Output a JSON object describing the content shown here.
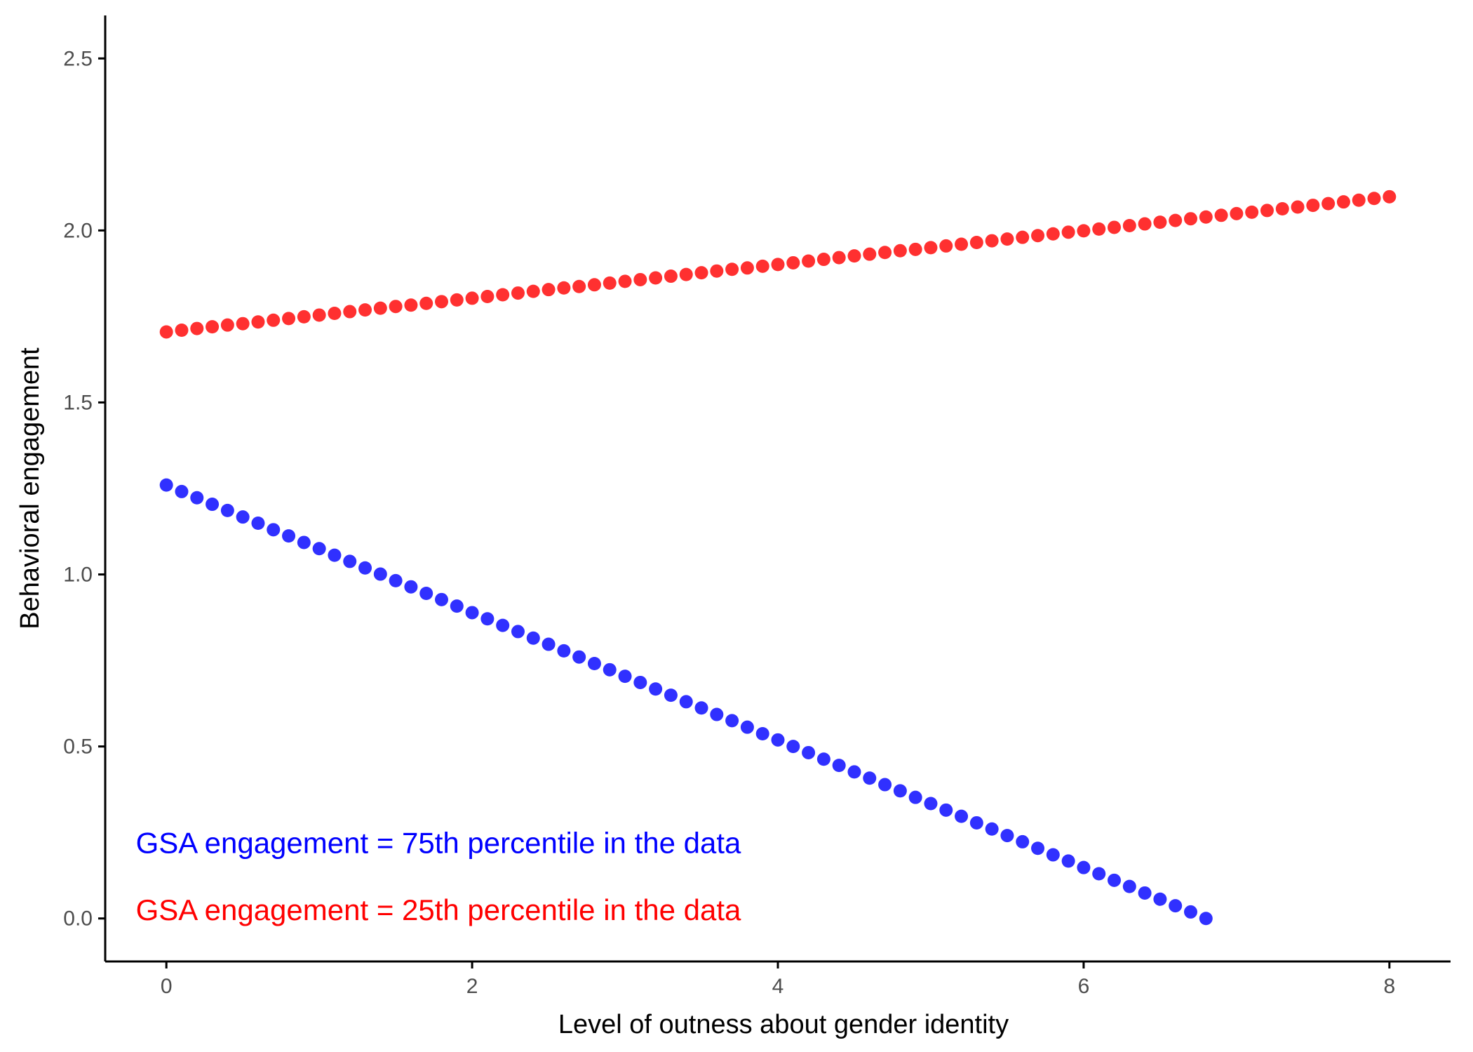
{
  "chart_data": {
    "type": "scatter",
    "title": "",
    "xlabel": "Level of outness about gender identity",
    "ylabel": "Behavioral engagement",
    "xlim": [
      -0.4,
      8.4
    ],
    "ylim": [
      -0.125,
      2.625
    ],
    "x_ticks": [
      {
        "value": 0,
        "label": "0"
      },
      {
        "value": 2,
        "label": "2"
      },
      {
        "value": 4,
        "label": "4"
      },
      {
        "value": 6,
        "label": "6"
      },
      {
        "value": 8,
        "label": "8"
      }
    ],
    "y_ticks": [
      {
        "value": 0.0,
        "label": "0.0"
      },
      {
        "value": 0.5,
        "label": "0.5"
      },
      {
        "value": 1.0,
        "label": "1.0"
      },
      {
        "value": 1.5,
        "label": "1.5"
      },
      {
        "value": 2.0,
        "label": "2.0"
      },
      {
        "value": 2.5,
        "label": "2.5"
      }
    ],
    "grid": false,
    "legend": "none",
    "series": [
      {
        "label": "GSA engagement = 75th percentile in the data",
        "color": "#2020ff",
        "x": [
          0,
          0.1,
          0.2,
          0.3,
          0.4,
          0.5,
          0.6,
          0.7,
          0.8,
          0.9,
          1,
          1.1,
          1.2,
          1.3,
          1.4,
          1.5,
          1.6,
          1.7,
          1.8,
          1.9,
          2,
          2.1,
          2.2,
          2.3,
          2.4,
          2.5,
          2.6,
          2.7,
          2.8,
          2.9,
          3,
          3.1,
          3.2,
          3.3,
          3.4,
          3.5,
          3.6,
          3.7,
          3.8,
          3.9,
          4,
          4.1,
          4.2,
          4.3,
          4.4,
          4.5,
          4.6,
          4.7,
          4.8,
          4.9,
          5,
          5.1,
          5.2,
          5.3,
          5.4,
          5.5,
          5.6,
          5.7,
          5.8,
          5.9,
          6,
          6.1,
          6.2,
          6.3,
          6.4,
          6.5,
          6.6,
          6.7,
          6.8
        ],
        "values": [
          1.26,
          1.241,
          1.223,
          1.204,
          1.186,
          1.167,
          1.149,
          1.13,
          1.112,
          1.093,
          1.075,
          1.056,
          1.038,
          1.019,
          1.001,
          0.982,
          0.964,
          0.945,
          0.927,
          0.908,
          0.889,
          0.871,
          0.852,
          0.834,
          0.815,
          0.797,
          0.778,
          0.76,
          0.741,
          0.723,
          0.704,
          0.686,
          0.667,
          0.649,
          0.63,
          0.612,
          0.593,
          0.575,
          0.556,
          0.537,
          0.519,
          0.5,
          0.482,
          0.463,
          0.445,
          0.426,
          0.408,
          0.389,
          0.371,
          0.352,
          0.334,
          0.315,
          0.297,
          0.278,
          0.26,
          0.241,
          0.223,
          0.204,
          0.185,
          0.167,
          0.148,
          0.13,
          0.111,
          0.093,
          0.074,
          0.056,
          0.037,
          0.019,
          0.0
        ]
      },
      {
        "label": "GSA engagement = 25th percentile in the data",
        "color": "#ff2020",
        "x": [
          0,
          0.1,
          0.2,
          0.3,
          0.4,
          0.5,
          0.6,
          0.7,
          0.8,
          0.9,
          1,
          1.1,
          1.2,
          1.3,
          1.4,
          1.5,
          1.6,
          1.7,
          1.8,
          1.9,
          2,
          2.1,
          2.2,
          2.3,
          2.4,
          2.5,
          2.6,
          2.7,
          2.8,
          2.9,
          3,
          3.1,
          3.2,
          3.3,
          3.4,
          3.5,
          3.6,
          3.7,
          3.8,
          3.9,
          4,
          4.1,
          4.2,
          4.3,
          4.4,
          4.5,
          4.6,
          4.7,
          4.8,
          4.9,
          5,
          5.1,
          5.2,
          5.3,
          5.4,
          5.5,
          5.6,
          5.7,
          5.8,
          5.9,
          6,
          6.1,
          6.2,
          6.3,
          6.4,
          6.5,
          6.6,
          6.7,
          6.8,
          6.9,
          7,
          7.1,
          7.2,
          7.3,
          7.4,
          7.5,
          7.6,
          7.7,
          7.8,
          7.9,
          8
        ],
        "values": [
          1.705,
          1.71,
          1.715,
          1.72,
          1.725,
          1.729,
          1.734,
          1.739,
          1.744,
          1.749,
          1.754,
          1.759,
          1.764,
          1.769,
          1.774,
          1.779,
          1.783,
          1.788,
          1.793,
          1.798,
          1.803,
          1.808,
          1.813,
          1.818,
          1.823,
          1.828,
          1.833,
          1.837,
          1.842,
          1.847,
          1.852,
          1.857,
          1.862,
          1.867,
          1.872,
          1.877,
          1.882,
          1.887,
          1.891,
          1.896,
          1.901,
          1.906,
          1.911,
          1.916,
          1.921,
          1.926,
          1.931,
          1.936,
          1.941,
          1.945,
          1.95,
          1.955,
          1.96,
          1.965,
          1.97,
          1.975,
          1.98,
          1.985,
          1.99,
          1.995,
          1.999,
          2.004,
          2.009,
          2.014,
          2.019,
          2.024,
          2.029,
          2.034,
          2.039,
          2.044,
          2.049,
          2.053,
          2.058,
          2.063,
          2.068,
          2.073,
          2.078,
          2.083,
          2.088,
          2.093,
          2.098
        ]
      }
    ],
    "annotations": [
      {
        "text": "GSA engagement = 75th percentile in the data",
        "color": "#0000ff",
        "x": -0.2,
        "y": 0.19
      },
      {
        "text": "GSA engagement = 25th percentile in the data",
        "color": "#ff0000",
        "x": -0.2,
        "y": -0.005
      }
    ]
  }
}
